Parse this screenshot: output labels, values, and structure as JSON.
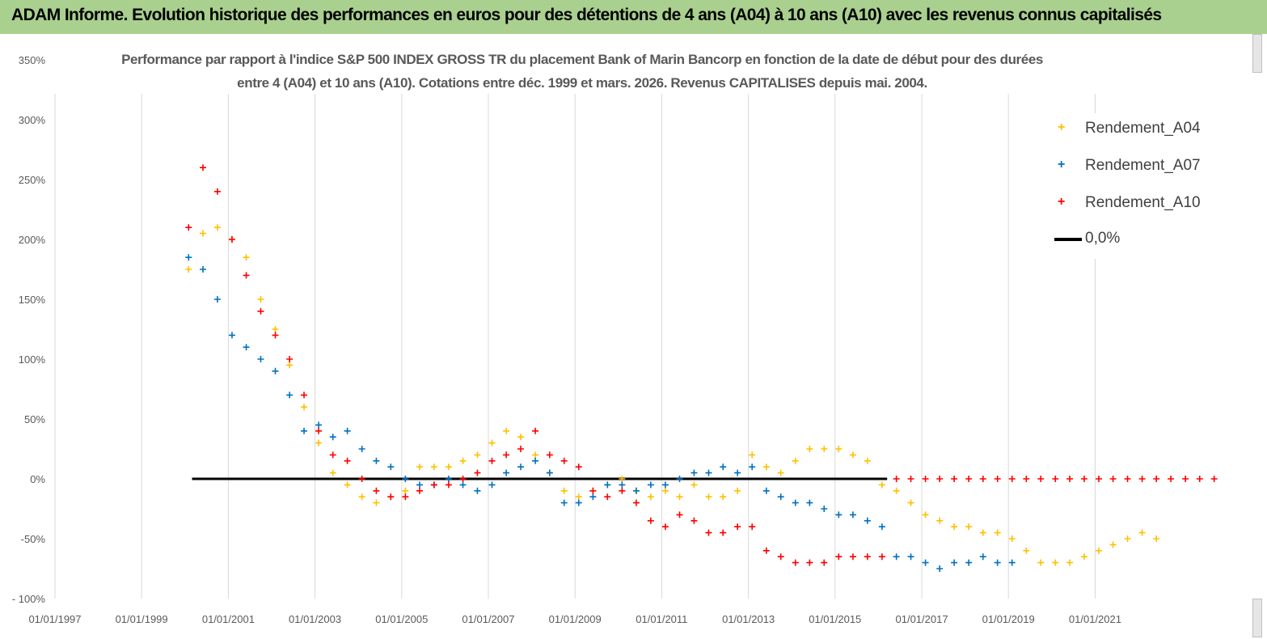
{
  "header": {
    "title": "ADAM Informe. Evolution historique des performances en euros pour des détentions de 4 ans (A04) à 10 ans (A10) avec les revenus connus capitalisés"
  },
  "chart_data": {
    "type": "scatter",
    "title_line1": "Performance par rapport à l'indice S&P 500 INDEX GROSS TR  du placement Bank of Marin Bancorp en fonction de la date de début pour des durées",
    "title_line2": "entre 4 (A04) et 10 ans (A10). Cotations entre déc. 1999 et mars. 2026. Revenus CAPITALISES depuis mai. 2004.",
    "xlabel": "",
    "ylabel": "",
    "x_range": [
      "1997-01-01",
      "2023-12-31"
    ],
    "ylim": [
      -100,
      350
    ],
    "y_ticks": [
      350,
      300,
      250,
      200,
      150,
      100,
      50,
      0,
      -50,
      -100
    ],
    "y_tick_labels": [
      "350%",
      "300%",
      "250%",
      "200%",
      "150%",
      "100%",
      "50%",
      "0%",
      "-50%",
      "- 100%"
    ],
    "x_ticks": [
      "1997-01-01",
      "1999-01-01",
      "2001-01-01",
      "2003-01-01",
      "2005-01-01",
      "2007-01-01",
      "2009-01-01",
      "2011-01-01",
      "2013-01-01",
      "2015-01-01",
      "2017-01-01",
      "2019-01-01",
      "2021-01-01"
    ],
    "x_tick_labels": [
      "01/01/1997",
      "01/01/1999",
      "01/01/2001",
      "01/01/2003",
      "01/01/2005",
      "01/01/2007",
      "01/01/2009",
      "01/01/2011",
      "01/01/2013",
      "01/01/2015",
      "01/01/2017",
      "01/01/2019",
      "01/01/2021"
    ],
    "grid": "vertical",
    "legend_position": "top-right",
    "marker": "+",
    "series": [
      {
        "name": "Rendement_A04",
        "color": "#ffc000",
        "x": [
          "2000-02-01",
          "2000-06-01",
          "2000-10-01",
          "2001-02-01",
          "2001-06-01",
          "2001-10-01",
          "2002-02-01",
          "2002-06-01",
          "2002-10-01",
          "2003-02-01",
          "2003-06-01",
          "2003-10-01",
          "2004-02-01",
          "2004-06-01",
          "2004-10-01",
          "2005-02-01",
          "2005-06-01",
          "2005-10-01",
          "2006-02-01",
          "2006-06-01",
          "2006-10-01",
          "2007-02-01",
          "2007-06-01",
          "2007-10-01",
          "2008-02-01",
          "2008-06-01",
          "2008-10-01",
          "2009-02-01",
          "2009-06-01",
          "2009-10-01",
          "2010-02-01",
          "2010-06-01",
          "2010-10-01",
          "2011-02-01",
          "2011-06-01",
          "2011-10-01",
          "2012-02-01",
          "2012-06-01",
          "2012-10-01",
          "2013-02-01",
          "2013-06-01",
          "2013-10-01",
          "2014-02-01",
          "2014-06-01",
          "2014-10-01",
          "2015-02-01",
          "2015-06-01",
          "2015-10-01",
          "2016-02-01",
          "2016-06-01",
          "2016-10-01",
          "2017-02-01",
          "2017-06-01",
          "2017-10-01",
          "2018-02-01",
          "2018-06-01",
          "2018-10-01",
          "2019-02-01",
          "2019-06-01",
          "2019-10-01",
          "2020-02-01",
          "2020-06-01",
          "2020-10-01",
          "2021-02-01",
          "2021-06-01",
          "2021-10-01",
          "2022-02-01",
          "2022-06-01"
        ],
        "y": [
          175,
          205,
          210,
          200,
          185,
          150,
          125,
          95,
          60,
          30,
          5,
          -5,
          -15,
          -20,
          -15,
          -10,
          10,
          10,
          10,
          15,
          20,
          30,
          40,
          35,
          20,
          5,
          -10,
          -15,
          -10,
          -5,
          0,
          -10,
          -15,
          -10,
          -15,
          -5,
          -15,
          -15,
          -10,
          20,
          10,
          5,
          15,
          25,
          25,
          25,
          20,
          15,
          -5,
          -10,
          -20,
          -30,
          -35,
          -40,
          -40,
          -45,
          -45,
          -50,
          -60,
          -70,
          -70,
          -70,
          -65,
          -60,
          -55,
          -50,
          -45,
          -50
        ]
      },
      {
        "name": "Rendement_A07",
        "color": "#0070c0",
        "x": [
          "2000-02-01",
          "2000-06-01",
          "2000-10-01",
          "2001-02-01",
          "2001-06-01",
          "2001-10-01",
          "2002-02-01",
          "2002-06-01",
          "2002-10-01",
          "2003-02-01",
          "2003-06-01",
          "2003-10-01",
          "2004-02-01",
          "2004-06-01",
          "2004-10-01",
          "2005-02-01",
          "2005-06-01",
          "2005-10-01",
          "2006-02-01",
          "2006-06-01",
          "2006-10-01",
          "2007-02-01",
          "2007-06-01",
          "2007-10-01",
          "2008-02-01",
          "2008-06-01",
          "2008-10-01",
          "2009-02-01",
          "2009-06-01",
          "2009-10-01",
          "2010-02-01",
          "2010-06-01",
          "2010-10-01",
          "2011-02-01",
          "2011-06-01",
          "2011-10-01",
          "2012-02-01",
          "2012-06-01",
          "2012-10-01",
          "2013-02-01",
          "2013-06-01",
          "2013-10-01",
          "2014-02-01",
          "2014-06-01",
          "2014-10-01",
          "2015-02-01",
          "2015-06-01",
          "2015-10-01",
          "2016-02-01",
          "2016-06-01",
          "2016-10-01",
          "2017-02-01",
          "2017-06-01",
          "2017-10-01",
          "2018-02-01",
          "2018-06-01",
          "2018-10-01",
          "2019-02-01"
        ],
        "y": [
          185,
          175,
          150,
          120,
          110,
          100,
          90,
          70,
          40,
          45,
          35,
          40,
          25,
          15,
          10,
          0,
          -5,
          -5,
          0,
          -5,
          -10,
          -5,
          5,
          10,
          15,
          5,
          -20,
          -20,
          -15,
          -5,
          -5,
          -10,
          -5,
          -5,
          0,
          5,
          5,
          10,
          5,
          10,
          -10,
          -15,
          -20,
          -20,
          -25,
          -30,
          -30,
          -35,
          -40,
          -65,
          -65,
          -70,
          -75,
          -70,
          -70,
          -65,
          -70,
          -70
        ]
      },
      {
        "name": "Rendement_A10",
        "color": "#ff0000",
        "x": [
          "2000-02-01",
          "2000-06-01",
          "2000-10-01",
          "2001-02-01",
          "2001-06-01",
          "2001-10-01",
          "2002-02-01",
          "2002-06-01",
          "2002-10-01",
          "2003-02-01",
          "2003-06-01",
          "2003-10-01",
          "2004-02-01",
          "2004-06-01",
          "2004-10-01",
          "2005-02-01",
          "2005-06-01",
          "2005-10-01",
          "2006-02-01",
          "2006-06-01",
          "2006-10-01",
          "2007-02-01",
          "2007-06-01",
          "2007-10-01",
          "2008-02-01",
          "2008-06-01",
          "2008-10-01",
          "2009-02-01",
          "2009-06-01",
          "2009-10-01",
          "2010-02-01",
          "2010-06-01",
          "2010-10-01",
          "2011-02-01",
          "2011-06-01",
          "2011-10-01",
          "2012-02-01",
          "2012-06-01",
          "2012-10-01",
          "2013-02-01",
          "2013-06-01",
          "2013-10-01",
          "2014-02-01",
          "2014-06-01",
          "2014-10-01",
          "2015-02-01",
          "2015-06-01",
          "2015-10-01",
          "2016-02-01",
          "2016-06-01",
          "2016-10-01",
          "2017-02-01",
          "2017-06-01",
          "2017-10-01",
          "2018-02-01",
          "2018-06-01",
          "2018-10-01",
          "2019-02-01",
          "2019-06-01",
          "2019-10-01",
          "2020-02-01",
          "2020-06-01",
          "2020-10-01",
          "2021-02-01",
          "2021-06-01",
          "2021-10-01",
          "2022-02-01",
          "2022-06-01",
          "2022-10-01",
          "2023-02-01",
          "2023-06-01",
          "2023-10-01"
        ],
        "y": [
          210,
          260,
          240,
          200,
          170,
          140,
          120,
          100,
          70,
          40,
          20,
          15,
          0,
          -10,
          -15,
          -15,
          -10,
          -5,
          -5,
          0,
          5,
          15,
          20,
          25,
          40,
          20,
          15,
          10,
          -10,
          -15,
          -10,
          -20,
          -35,
          -40,
          -30,
          -35,
          -45,
          -45,
          -40,
          -40,
          -60,
          -65,
          -70,
          -70,
          -70,
          -65,
          -65,
          -65,
          -65,
          0,
          0,
          0,
          0,
          0,
          0,
          0,
          0,
          0,
          0,
          0,
          0,
          0,
          0,
          0,
          0,
          0,
          0,
          0,
          0,
          0,
          0,
          0
        ]
      }
    ],
    "reference_line": {
      "name": "0,0%",
      "value": 0,
      "x_start": "2000-03-01",
      "x_end": "2016-03-15",
      "color": "#000000"
    }
  }
}
